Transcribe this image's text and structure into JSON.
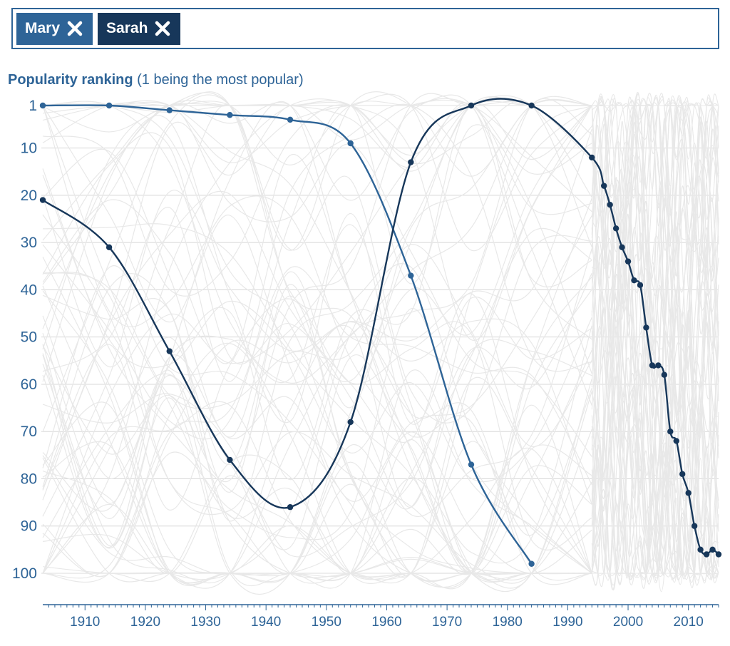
{
  "chips": [
    {
      "label": "Mary",
      "color": "#2e6497"
    },
    {
      "label": "Sarah",
      "color": "#17375a"
    }
  ],
  "title": {
    "bold": "Popularity ranking",
    "rest": " (1 being the most popular)"
  },
  "chart_data": {
    "type": "line",
    "title": "Popularity ranking (1 being the most popular)",
    "xlabel": "",
    "ylabel": "",
    "xlim": [
      1903,
      2015
    ],
    "ylim": [
      1,
      100
    ],
    "y_inverted": true,
    "grid": true,
    "y_ticks": [
      "1",
      "10",
      "20",
      "30",
      "40",
      "50",
      "60",
      "70",
      "80",
      "90",
      "100"
    ],
    "x_ticks": [
      "1910",
      "1920",
      "1930",
      "1940",
      "1950",
      "1960",
      "1970",
      "1980",
      "1990",
      "2000",
      "2010"
    ],
    "background_lines_color": "#e8e8e8",
    "series": [
      {
        "name": "Mary",
        "color": "#2e6497",
        "x": [
          1903,
          1914,
          1924,
          1934,
          1944,
          1954,
          1964,
          1974,
          1984
        ],
        "y": [
          1,
          1,
          2,
          3,
          4,
          9,
          37,
          77,
          98
        ]
      },
      {
        "name": "Sarah",
        "color": "#17375a",
        "x": [
          1903,
          1914,
          1924,
          1934,
          1944,
          1954,
          1964,
          1974,
          1984,
          1994,
          1996,
          1997,
          1998,
          1999,
          2000,
          2001,
          2002,
          2003,
          2004,
          2005,
          2006,
          2007,
          2008,
          2009,
          2010,
          2011,
          2012,
          2013,
          2014,
          2015
        ],
        "y": [
          21,
          31,
          53,
          76,
          86,
          68,
          13,
          1,
          1,
          12,
          18,
          22,
          27,
          31,
          34,
          38,
          39,
          48,
          56,
          56,
          58,
          70,
          72,
          79,
          83,
          90,
          95,
          96,
          95,
          96
        ]
      }
    ]
  }
}
